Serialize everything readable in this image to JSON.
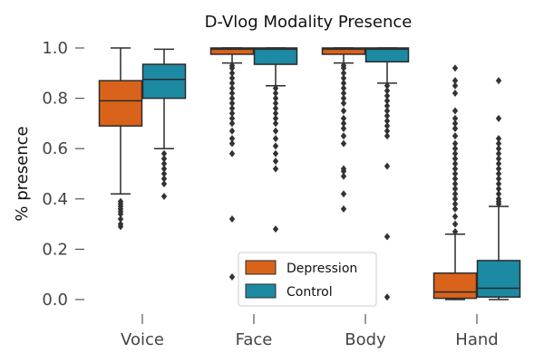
{
  "chart_data": {
    "type": "box",
    "title": "D-Vlog Modality Presence",
    "xlabel": "",
    "ylabel": "% presence",
    "ylim": [
      -0.05,
      1.05
    ],
    "yticks": [
      "0.0",
      "0.2",
      "0.4",
      "0.6",
      "0.8",
      "1.0"
    ],
    "categories": [
      "Voice",
      "Face",
      "Body",
      "Hand"
    ],
    "legend": {
      "position": "lower-center",
      "entries": [
        "Depression",
        "Control"
      ]
    },
    "colors": {
      "Depression": "#d9631b",
      "Control": "#1c8aa3",
      "edge": "#2b2b2b"
    },
    "series": [
      {
        "name": "Depression",
        "boxes": [
          {
            "category": "Voice",
            "whisker_low": 0.42,
            "q1": 0.69,
            "median": 0.79,
            "q3": 0.87,
            "whisker_high": 1.0,
            "outliers": [
              0.29,
              0.3,
              0.32,
              0.34,
              0.35,
              0.36,
              0.37,
              0.38,
              0.39
            ]
          },
          {
            "category": "Face",
            "whisker_low": 0.94,
            "q1": 0.975,
            "median": 0.995,
            "q3": 1.0,
            "whisker_high": 1.0,
            "outliers": [
              0.09,
              0.32,
              0.58,
              0.62,
              0.64,
              0.67,
              0.7,
              0.72,
              0.74,
              0.76,
              0.78,
              0.8,
              0.82,
              0.84,
              0.86,
              0.88,
              0.9,
              0.92,
              0.93
            ]
          },
          {
            "category": "Body",
            "whisker_low": 0.94,
            "q1": 0.975,
            "median": 0.995,
            "q3": 1.0,
            "whisker_high": 1.0,
            "outliers": [
              0.36,
              0.42,
              0.49,
              0.51,
              0.52,
              0.62,
              0.65,
              0.68,
              0.7,
              0.72,
              0.75,
              0.78,
              0.8,
              0.82,
              0.84,
              0.86,
              0.88,
              0.9,
              0.92,
              0.93
            ]
          },
          {
            "category": "Hand",
            "whisker_low": 0.0,
            "q1": 0.005,
            "median": 0.03,
            "q3": 0.105,
            "whisker_high": 0.26,
            "outliers": [
              0.27,
              0.3,
              0.33,
              0.36,
              0.38,
              0.4,
              0.42,
              0.44,
              0.46,
              0.48,
              0.5,
              0.52,
              0.54,
              0.56,
              0.58,
              0.6,
              0.62,
              0.65,
              0.68,
              0.7,
              0.72,
              0.75,
              0.82,
              0.85,
              0.87,
              0.92
            ]
          }
        ]
      },
      {
        "name": "Control",
        "boxes": [
          {
            "category": "Voice",
            "whisker_low": 0.6,
            "q1": 0.8,
            "median": 0.875,
            "q3": 0.935,
            "whisker_high": 0.995,
            "outliers": [
              0.41,
              0.46,
              0.48,
              0.5,
              0.52,
              0.54,
              0.56,
              0.58
            ]
          },
          {
            "category": "Face",
            "whisker_low": 0.85,
            "q1": 0.935,
            "median": 0.995,
            "q3": 1.0,
            "whisker_high": 1.0,
            "outliers": [
              0.28,
              0.52,
              0.55,
              0.58,
              0.61,
              0.64,
              0.67,
              0.7,
              0.72,
              0.74,
              0.76,
              0.78,
              0.8,
              0.82,
              0.84
            ]
          },
          {
            "category": "Body",
            "whisker_low": 0.86,
            "q1": 0.945,
            "median": 0.995,
            "q3": 1.0,
            "whisker_high": 1.0,
            "outliers": [
              0.01,
              0.25,
              0.53,
              0.65,
              0.67,
              0.69,
              0.71,
              0.73,
              0.75,
              0.77,
              0.79,
              0.81,
              0.83,
              0.85
            ]
          },
          {
            "category": "Hand",
            "whisker_low": 0.0,
            "q1": 0.01,
            "median": 0.045,
            "q3": 0.155,
            "whisker_high": 0.37,
            "outliers": [
              0.38,
              0.39,
              0.4,
              0.42,
              0.44,
              0.46,
              0.48,
              0.5,
              0.52,
              0.54,
              0.56,
              0.58,
              0.6,
              0.62,
              0.64,
              0.72,
              0.87
            ]
          }
        ]
      }
    ]
  }
}
